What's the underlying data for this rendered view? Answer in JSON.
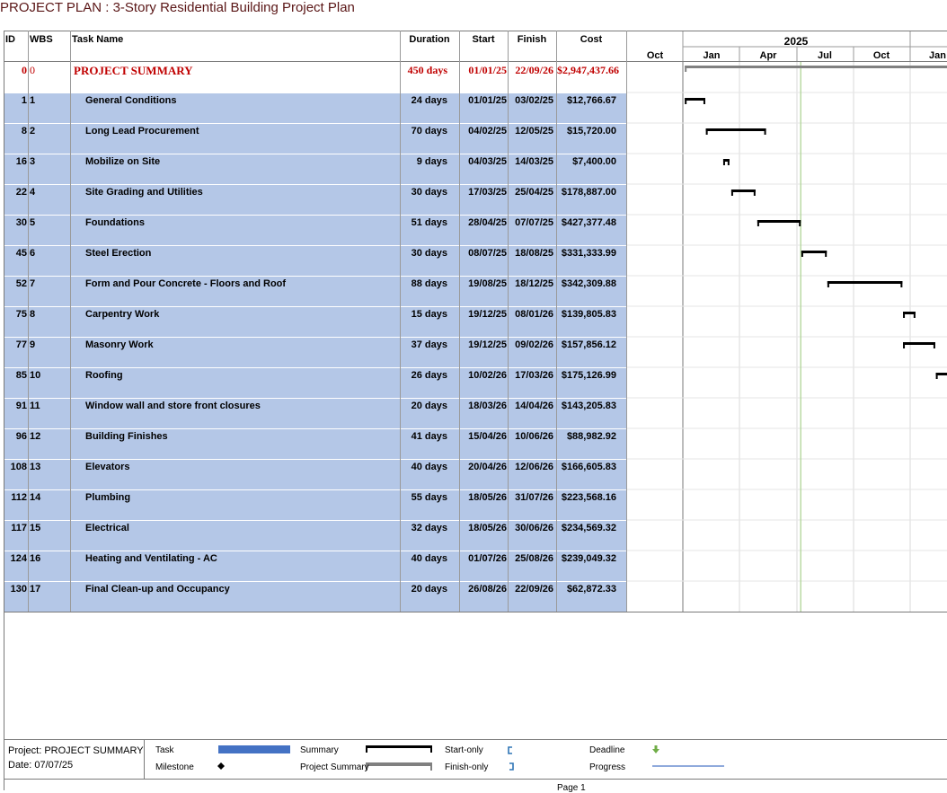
{
  "title": "PROJECT PLAN : 3-Story Residential Building Project Plan",
  "columns": {
    "id": "ID",
    "wbs": "WBS",
    "task_name": "Task Name",
    "duration": "Duration",
    "start": "Start",
    "finish": "Finish",
    "cost": "Cost"
  },
  "timescale": {
    "year_label": "2025",
    "months": [
      "Oct",
      "Jan",
      "Apr",
      "Jul",
      "Oct",
      "Jan"
    ]
  },
  "rows": [
    {
      "id": "0",
      "wbs": "0",
      "name": "PROJECT SUMMARY",
      "duration": "450 days",
      "start": "01/01/25",
      "finish": "22/09/26",
      "cost": "$2,947,437.66",
      "summary": true
    },
    {
      "id": "1",
      "wbs": "1",
      "name": "General Conditions",
      "duration": "24 days",
      "start": "01/01/25",
      "finish": "03/02/25",
      "cost": "$12,766.67"
    },
    {
      "id": "8",
      "wbs": "2",
      "name": "Long Lead Procurement",
      "duration": "70 days",
      "start": "04/02/25",
      "finish": "12/05/25",
      "cost": "$15,720.00"
    },
    {
      "id": "16",
      "wbs": "3",
      "name": "Mobilize on Site",
      "duration": "9 days",
      "start": "04/03/25",
      "finish": "14/03/25",
      "cost": "$7,400.00"
    },
    {
      "id": "22",
      "wbs": "4",
      "name": "Site Grading and Utilities",
      "duration": "30 days",
      "start": "17/03/25",
      "finish": "25/04/25",
      "cost": "$178,887.00"
    },
    {
      "id": "30",
      "wbs": "5",
      "name": "Foundations",
      "duration": "51 days",
      "start": "28/04/25",
      "finish": "07/07/25",
      "cost": "$427,377.48"
    },
    {
      "id": "45",
      "wbs": "6",
      "name": "Steel Erection",
      "duration": "30 days",
      "start": "08/07/25",
      "finish": "18/08/25",
      "cost": "$331,333.99"
    },
    {
      "id": "52",
      "wbs": "7",
      "name": "Form and Pour Concrete - Floors and Roof",
      "duration": "88 days",
      "start": "19/08/25",
      "finish": "18/12/25",
      "cost": "$342,309.88"
    },
    {
      "id": "75",
      "wbs": "8",
      "name": "Carpentry Work",
      "duration": "15 days",
      "start": "19/12/25",
      "finish": "08/01/26",
      "cost": "$139,805.83"
    },
    {
      "id": "77",
      "wbs": "9",
      "name": "Masonry Work",
      "duration": "37 days",
      "start": "19/12/25",
      "finish": "09/02/26",
      "cost": "$157,856.12"
    },
    {
      "id": "85",
      "wbs": "10",
      "name": "Roofing",
      "duration": "26 days",
      "start": "10/02/26",
      "finish": "17/03/26",
      "cost": "$175,126.99"
    },
    {
      "id": "91",
      "wbs": "11",
      "name": "Window wall and store front closures",
      "duration": "20 days",
      "start": "18/03/26",
      "finish": "14/04/26",
      "cost": "$143,205.83"
    },
    {
      "id": "96",
      "wbs": "12",
      "name": "Building Finishes",
      "duration": "41 days",
      "start": "15/04/26",
      "finish": "10/06/26",
      "cost": "$88,982.92"
    },
    {
      "id": "108",
      "wbs": "13",
      "name": "Elevators",
      "duration": "40 days",
      "start": "20/04/26",
      "finish": "12/06/26",
      "cost": "$166,605.83"
    },
    {
      "id": "112",
      "wbs": "14",
      "name": "Plumbing",
      "duration": "55 days",
      "start": "18/05/26",
      "finish": "31/07/26",
      "cost": "$223,568.16"
    },
    {
      "id": "117",
      "wbs": "15",
      "name": "Electrical",
      "duration": "32 days",
      "start": "18/05/26",
      "finish": "30/06/26",
      "cost": "$234,569.32"
    },
    {
      "id": "124",
      "wbs": "16",
      "name": "Heating and Ventilating - AC",
      "duration": "40 days",
      "start": "01/07/26",
      "finish": "25/08/26",
      "cost": "$239,049.32"
    },
    {
      "id": "130",
      "wbs": "17",
      "name": "Final Clean-up and Occupancy",
      "duration": "20 days",
      "start": "26/08/26",
      "finish": "22/09/26",
      "cost": "$62,872.33"
    }
  ],
  "footer": {
    "project": "Project: PROJECT SUMMARY",
    "date": "Date: 07/07/25",
    "page": "Page 1",
    "legend": {
      "task": "Task",
      "milestone": "Milestone",
      "summary": "Summary",
      "project_summary": "Project Summary",
      "start_only": "Start-only",
      "finish_only": "Finish-only",
      "deadline": "Deadline",
      "progress": "Progress"
    }
  },
  "colors": {
    "title": "#5a1616",
    "summary_text": "#c00000",
    "row_fill": "#b4c7e7",
    "task_legend": "#4472c4",
    "progress_legend": "#8faadc",
    "deadline_arrow": "#70ad47",
    "start_finish_only": "#2e75b6",
    "status_line": "#a9d18e"
  }
}
